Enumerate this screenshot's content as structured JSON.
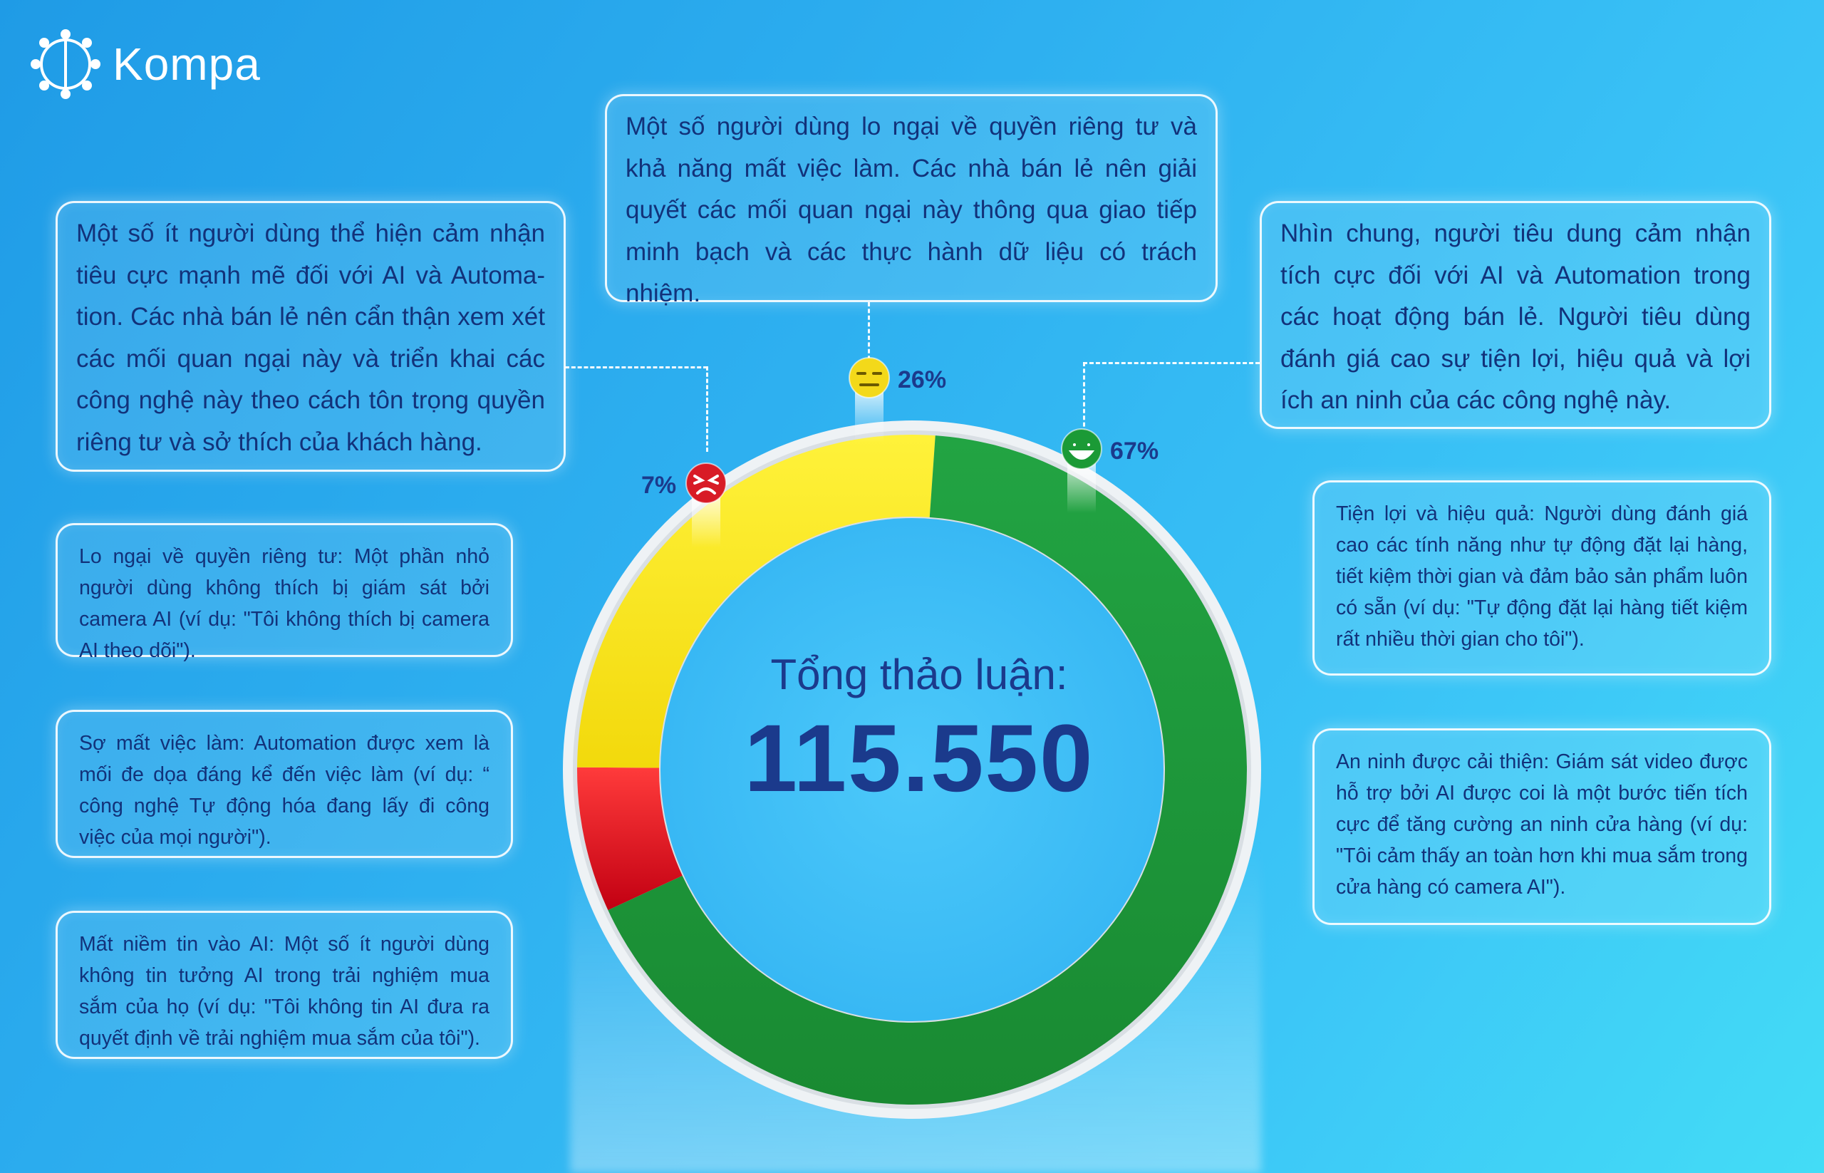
{
  "brand": {
    "name": "Kompa"
  },
  "chart_data": {
    "type": "pie",
    "categories": [
      "Tiêu cực",
      "Trung lập",
      "Tích cực"
    ],
    "values": [
      7,
      26,
      67
    ],
    "value_labels": [
      "7%",
      "26%",
      "67%"
    ],
    "colors": [
      "#e8252e",
      "#f7e81e",
      "#1f9a3b"
    ],
    "center_title": "Tổng thảo luận:",
    "center_value": "115.550"
  },
  "notes": {
    "negative_summary": "Một số ít người dùng thể hiện cảm nhận tiêu cực mạnh mẽ đối với AI và Automa- tion. Các nhà bán lẻ nên cẩn thận xem xét các mối quan ngại này và triển khai các công nghệ này theo cách tôn trọng quyền riêng tư và sở thích của khách hàng.",
    "neutral_summary": "Một số người dùng lo ngại về quyền riêng tư và khả năng mất việc làm. Các nhà bán lẻ nên giải quyết các mối quan ngại này thông qua giao tiếp minh bạch và các thực hành dữ liệu có trách nhiệm.",
    "positive_summary": "Nhìn chung, người tiêu dung cảm nhận tích cực đối với AI và Automation trong các hoạt động bán lẻ. Người tiêu dùng đánh giá cao sự tiện lợi, hiệu quả và lợi ích an ninh của các công nghệ này.",
    "privacy": "Lo ngại về quyền riêng tư: Một phần nhỏ người dùng không thích bị giám sát bởi camera AI (ví dụ: \"Tôi không thích bị camera AI theo dõi\").",
    "job_loss": "Sợ mất việc làm: Automation được xem là mối đe dọa đáng kể đến việc làm (ví dụ: “ công nghệ Tự động hóa đang lấy đi công việc của mọi người\").",
    "distrust": "Mất niềm tin vào AI: Một số ít người dùng không tin tưởng AI trong trải nghiệm mua sắm của họ (ví dụ: \"Tôi không tin AI đưa ra quyết định về trải nghiệm mua sắm của tôi\").",
    "convenience": "Tiện lợi và hiệu quả: Người dùng đánh giá cao các tính năng như tự động đặt lại hàng, tiết kiệm thời gian và đảm bảo sản phẩm luôn có sẵn (ví dụ: \"Tự động đặt lại hàng tiết kiệm rất nhiều thời gian cho tôi\").",
    "security": "An ninh được cải thiện: Giám sát video được hỗ trợ bởi AI được coi là một bước tiến tích cực để tăng cường an ninh cửa hàng (ví dụ: \"Tôi cảm thấy an toàn hơn khi mua sắm trong cửa hàng có camera AI\")."
  },
  "icons": [
    "kompa-logo-icon",
    "angry-face-icon",
    "neutral-face-icon",
    "smile-face-icon"
  ]
}
